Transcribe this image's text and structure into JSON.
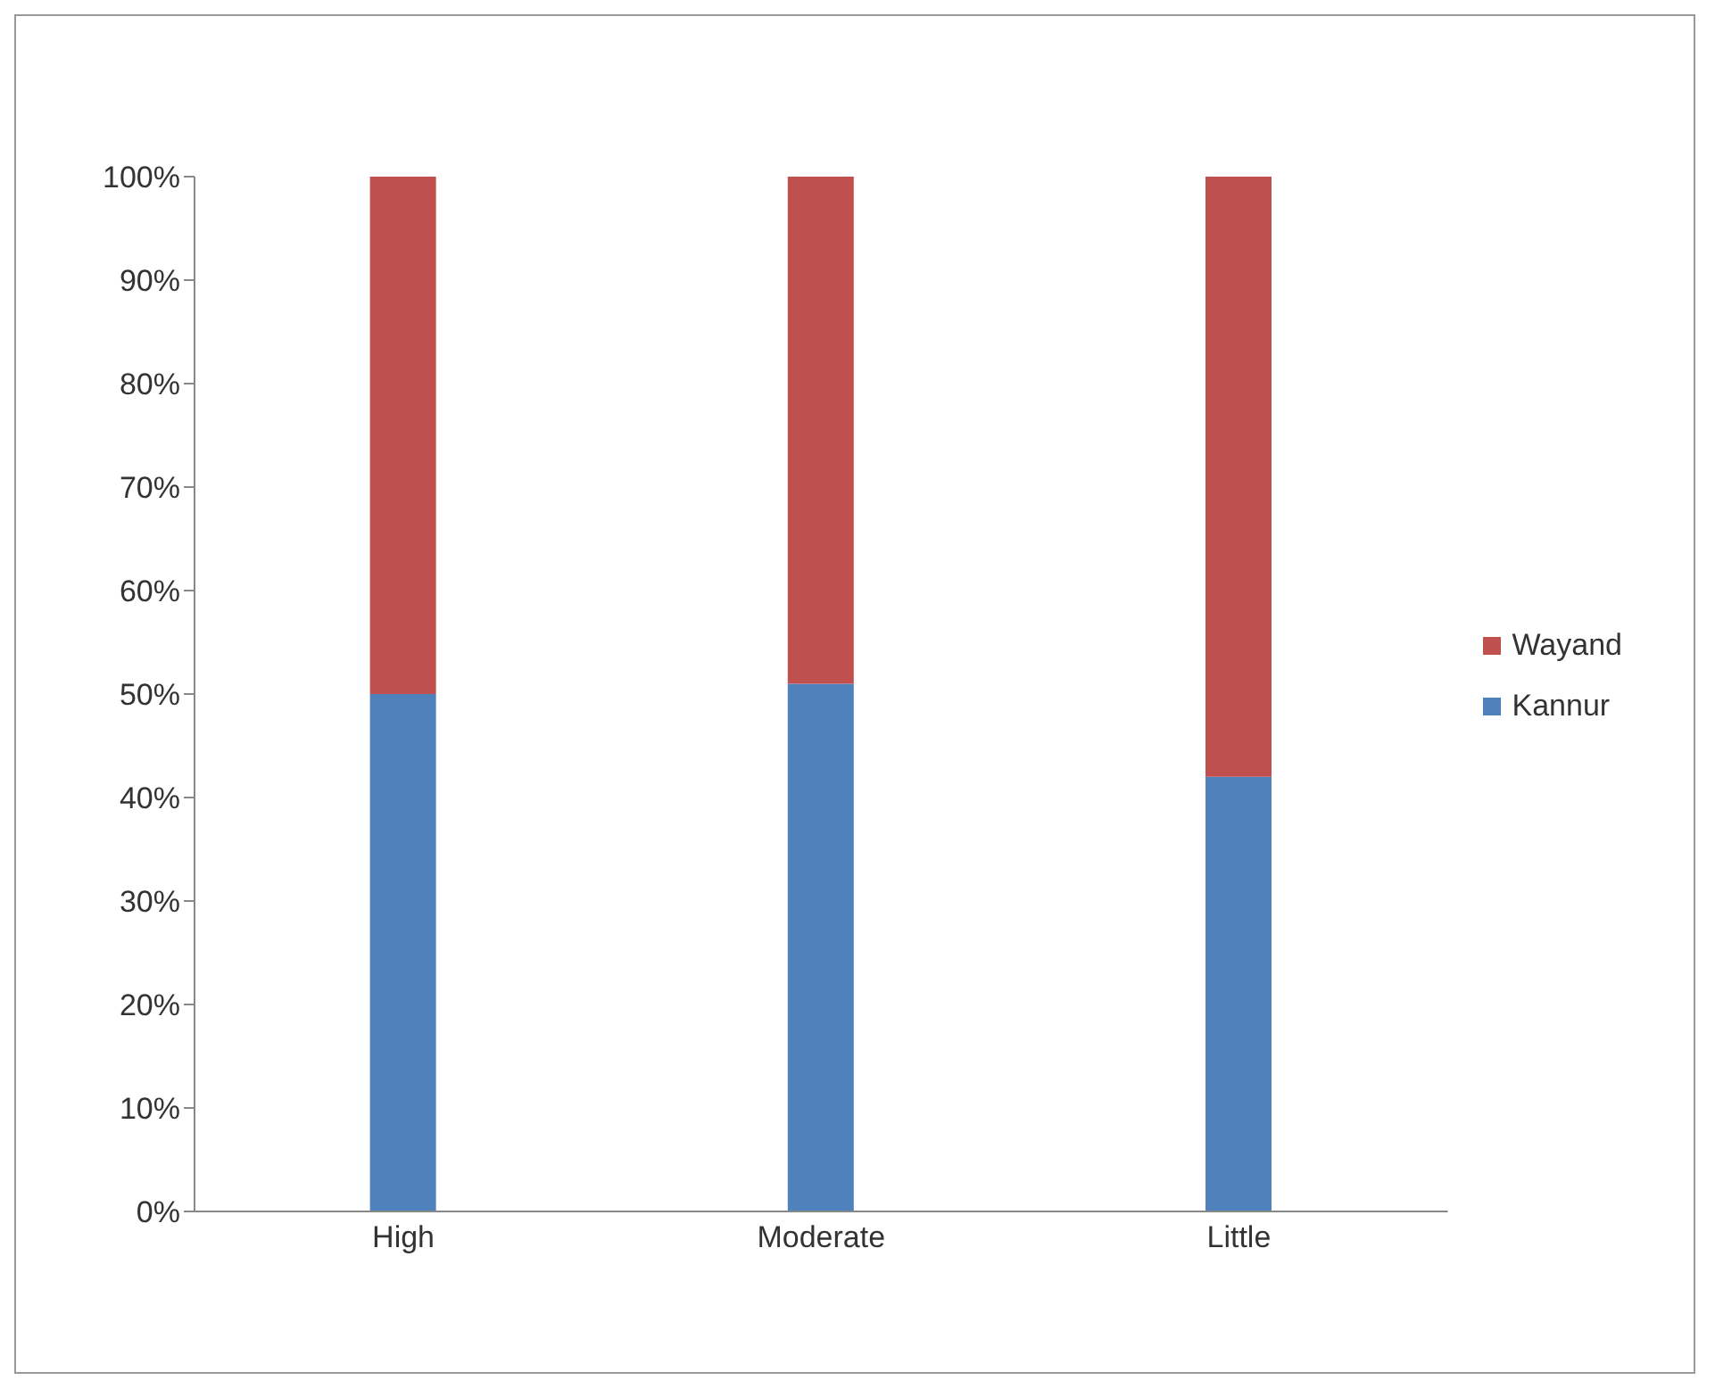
{
  "chart_data": {
    "type": "bar",
    "stacked": true,
    "categories": [
      "High",
      "Moderate",
      "Little"
    ],
    "series": [
      {
        "name": "Kannur",
        "color": "#4f81bd",
        "values": [
          50,
          51,
          42
        ]
      },
      {
        "name": "Wayand",
        "color": "#c0504d",
        "values": [
          50,
          49,
          58
        ]
      }
    ],
    "ylim": [
      0,
      100
    ],
    "yticks": [
      {
        "value": 0,
        "label": "0%"
      },
      {
        "value": 10,
        "label": "10%"
      },
      {
        "value": 20,
        "label": "20%"
      },
      {
        "value": 30,
        "label": "30%"
      },
      {
        "value": 40,
        "label": "40%"
      },
      {
        "value": 50,
        "label": "50%"
      },
      {
        "value": 60,
        "label": "60%"
      },
      {
        "value": 70,
        "label": "70%"
      },
      {
        "value": 80,
        "label": "80%"
      },
      {
        "value": 90,
        "label": "90%"
      },
      {
        "value": 100,
        "label": "100%"
      }
    ],
    "legend": "right",
    "grid": false
  }
}
